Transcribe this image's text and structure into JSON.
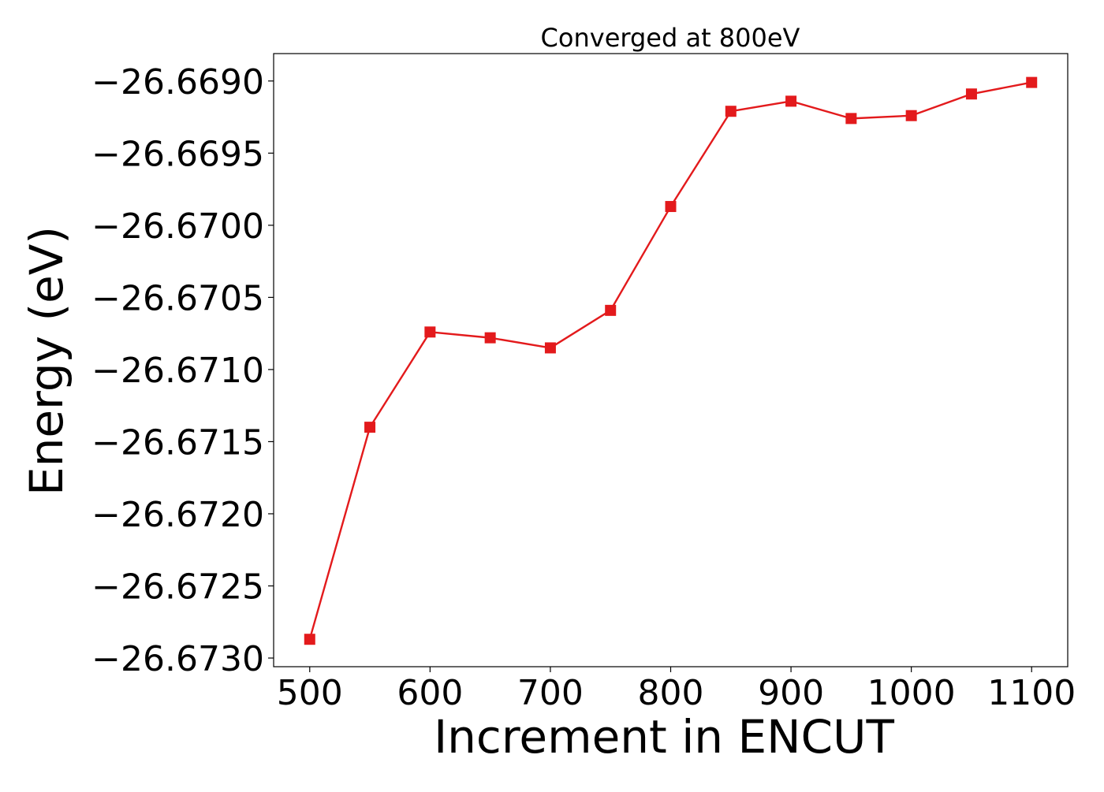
{
  "chart_data": {
    "type": "line",
    "title": "Converged at 800eV",
    "xlabel": "Increment in ENCUT",
    "ylabel": "Energy (eV)",
    "xlim": [
      470,
      1130
    ],
    "ylim": [
      -26.67306,
      -26.66881
    ],
    "x_ticks": [
      500,
      600,
      700,
      800,
      900,
      1000,
      1100
    ],
    "x_tick_labels": [
      "500",
      "600",
      "700",
      "800",
      "900",
      "1000",
      "1100"
    ],
    "y_ticks": [
      -26.669,
      -26.6695,
      -26.67,
      -26.6705,
      -26.671,
      -26.6715,
      -26.672,
      -26.6725,
      -26.673
    ],
    "y_tick_labels": [
      "−26.6690",
      "−26.6695",
      "−26.6700",
      "−26.6705",
      "−26.6710",
      "−26.6715",
      "−26.6720",
      "−26.6725",
      "−26.6730"
    ],
    "grid": false,
    "series": [
      {
        "color": "#e31a1c",
        "marker": "square",
        "x": [
          500,
          550,
          600,
          650,
          700,
          750,
          800,
          850,
          900,
          950,
          1000,
          1050,
          1100
        ],
        "y": [
          -26.67287,
          -26.6714,
          -26.67074,
          -26.67078,
          -26.67085,
          -26.67059,
          -26.66987,
          -26.66921,
          -26.66914,
          -26.66926,
          -26.66924,
          -26.66909,
          -26.66901
        ]
      }
    ]
  }
}
